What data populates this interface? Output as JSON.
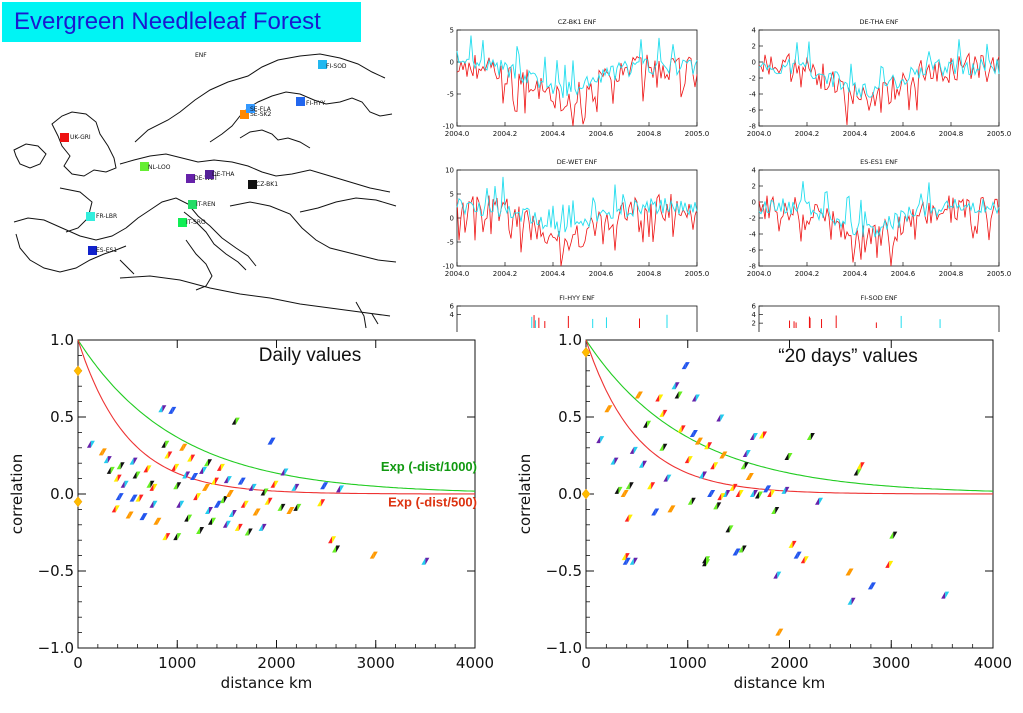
{
  "header": {
    "title": "Evergreen Needleleaf Forest",
    "title_bg": "#00f4f4",
    "title_color": "#1a1ad0"
  },
  "map": {
    "label": "ENF",
    "sites": [
      {
        "name": "FI-SOD",
        "color": "#22b8f0"
      },
      {
        "name": "FI-HYY",
        "color": "#2266ee"
      },
      {
        "name": "SE-SK2",
        "color": "#ff8800"
      },
      {
        "name": "SE-FLA",
        "color": "#3399ff"
      },
      {
        "name": "UK-GRI",
        "color": "#ee1111"
      },
      {
        "name": "NL-LOO",
        "color": "#66ee33"
      },
      {
        "name": "DE-WET",
        "color": "#6622aa"
      },
      {
        "name": "DE-THA",
        "color": "#552299"
      },
      {
        "name": "CZ-BK1",
        "color": "#111111"
      },
      {
        "name": "IT-REN",
        "color": "#22dd66"
      },
      {
        "name": "IT-SRO",
        "color": "#11ee55"
      },
      {
        "name": "FR-LBR",
        "color": "#33eedd"
      },
      {
        "name": "ES-ES1",
        "color": "#1122cc"
      }
    ]
  },
  "ts_panels": [
    {
      "title": "CZ-BK1 ENF",
      "yticks": [
        "5",
        "0",
        "-5",
        "-10"
      ],
      "ylim": [
        -10,
        5
      ]
    },
    {
      "title": "DE-THA ENF",
      "yticks": [
        "4",
        "2",
        "0",
        "-2",
        "-4",
        "-6",
        "-8"
      ],
      "ylim": [
        -8,
        4
      ]
    },
    {
      "title": "DE-WET ENF",
      "yticks": [
        "10",
        "5",
        "0",
        "-5",
        "-10"
      ],
      "ylim": [
        -10,
        10
      ]
    },
    {
      "title": "ES-ES1 ENF",
      "yticks": [
        "4",
        "2",
        "0",
        "-2",
        "-4",
        "-6",
        "-8"
      ],
      "ylim": [
        -8,
        4
      ]
    },
    {
      "title": "FI-HYY ENF",
      "yticks": [
        "6",
        "4"
      ],
      "ylim": [
        -8,
        6
      ]
    },
    {
      "title": "FI-SOD ENF",
      "yticks": [
        "6",
        "4",
        "2"
      ],
      "ylim": [
        -8,
        6
      ]
    }
  ],
  "ts_xticks": [
    "2004.0",
    "2004.2",
    "2004.4",
    "2004.6",
    "2004.8",
    "2005.0"
  ],
  "chart_data": [
    {
      "type": "scatter",
      "title": "Daily values",
      "xlabel": "distance km",
      "ylabel": "correlation",
      "xlim": [
        0,
        4000
      ],
      "ylim": [
        -1.0,
        1.0
      ],
      "xticks": [
        "0",
        "1000",
        "2000",
        "3000",
        "4000"
      ],
      "yticks": [
        "1.0",
        "0.5",
        "0.0",
        "−0.5",
        "−1.0"
      ],
      "curves": [
        {
          "label": "Exp (-dist/1000)",
          "scale": 1000,
          "color": "#22cc22",
          "label_color": "#119911"
        },
        {
          "label": "Exp (-dist/500)",
          "scale": 500,
          "color": "#ee3333",
          "label_color": "#dd3311"
        }
      ],
      "points": [
        [
          0,
          0.8
        ],
        [
          0,
          -0.05
        ],
        [
          130,
          0.32
        ],
        [
          250,
          0.27
        ],
        [
          300,
          0.22
        ],
        [
          330,
          0.15
        ],
        [
          400,
          0.1
        ],
        [
          420,
          -0.02
        ],
        [
          380,
          -0.1
        ],
        [
          430,
          0.18
        ],
        [
          470,
          0.06
        ],
        [
          520,
          -0.14
        ],
        [
          560,
          0.21
        ],
        [
          590,
          0.12
        ],
        [
          620,
          -0.03
        ],
        [
          660,
          -0.15
        ],
        [
          700,
          0.16
        ],
        [
          730,
          0.06
        ],
        [
          760,
          -0.07
        ],
        [
          800,
          -0.18
        ],
        [
          850,
          0.55
        ],
        [
          880,
          0.32
        ],
        [
          910,
          0.25
        ],
        [
          950,
          0.54
        ],
        [
          980,
          0.17
        ],
        [
          1000,
          0.05
        ],
        [
          1030,
          -0.07
        ],
        [
          1060,
          0.3
        ],
        [
          1090,
          0.12
        ],
        [
          1110,
          -0.16
        ],
        [
          1140,
          0.23
        ],
        [
          1170,
          0.11
        ],
        [
          1200,
          -0.02
        ],
        [
          1230,
          -0.24
        ],
        [
          1260,
          0.15
        ],
        [
          1290,
          0.04
        ],
        [
          1320,
          -0.11
        ],
        [
          1350,
          -0.18
        ],
        [
          1380,
          0.08
        ],
        [
          1410,
          -0.07
        ],
        [
          1440,
          0.17
        ],
        [
          1470,
          -0.04
        ],
        [
          1500,
          -0.2
        ],
        [
          1530,
          0.0
        ],
        [
          1560,
          -0.13
        ],
        [
          1590,
          0.47
        ],
        [
          1620,
          -0.22
        ],
        [
          1650,
          0.08
        ],
        [
          1680,
          -0.07
        ],
        [
          1720,
          -0.25
        ],
        [
          1760,
          0.04
        ],
        [
          1800,
          -0.12
        ],
        [
          1860,
          -0.22
        ],
        [
          1880,
          0.01
        ],
        [
          1920,
          -0.05
        ],
        [
          1950,
          0.34
        ],
        [
          1980,
          0.06
        ],
        [
          2050,
          -0.09
        ],
        [
          2080,
          0.14
        ],
        [
          2140,
          -0.11
        ],
        [
          2190,
          0.04
        ],
        [
          2210,
          -0.09
        ],
        [
          2450,
          -0.06
        ],
        [
          2480,
          0.05
        ],
        [
          2560,
          -0.3
        ],
        [
          2600,
          -0.36
        ],
        [
          2640,
          0.03
        ],
        [
          2980,
          -0.4
        ],
        [
          3500,
          -0.44
        ],
        [
          1000,
          -0.28
        ],
        [
          890,
          -0.28
        ],
        [
          560,
          -0.03
        ],
        [
          760,
          0.04
        ],
        [
          1310,
          0.2
        ],
        [
          1510,
          0.09
        ]
      ]
    },
    {
      "type": "scatter",
      "title": "“20 days” values",
      "xlabel": "distance km",
      "ylabel": "correlation",
      "xlim": [
        0,
        4000
      ],
      "ylim": [
        -1.0,
        1.0
      ],
      "xticks": [
        "0",
        "1000",
        "2000",
        "3000",
        "4000"
      ],
      "yticks": [
        "1.0",
        "0.5",
        "0.0",
        "−0.5",
        "−1.0"
      ],
      "curves": [
        {
          "label": "",
          "scale": 1000,
          "color": "#22cc22",
          "label_color": "#119911"
        },
        {
          "label": "",
          "scale": 500,
          "color": "#ee3333",
          "label_color": "#dd3311"
        }
      ],
      "points": [
        [
          0,
          0.92
        ],
        [
          0,
          0.0
        ],
        [
          140,
          0.35
        ],
        [
          220,
          0.55
        ],
        [
          280,
          0.21
        ],
        [
          320,
          0.02
        ],
        [
          390,
          -0.41
        ],
        [
          400,
          -0.44
        ],
        [
          420,
          -0.16
        ],
        [
          430,
          0.05
        ],
        [
          470,
          0.28
        ],
        [
          520,
          0.64
        ],
        [
          560,
          0.19
        ],
        [
          600,
          0.45
        ],
        [
          640,
          0.05
        ],
        [
          680,
          -0.12
        ],
        [
          720,
          0.62
        ],
        [
          760,
          0.3
        ],
        [
          800,
          0.1
        ],
        [
          840,
          -0.1
        ],
        [
          880,
          0.7
        ],
        [
          910,
          0.64
        ],
        [
          940,
          0.42
        ],
        [
          980,
          0.83
        ],
        [
          1010,
          0.22
        ],
        [
          1040,
          -0.05
        ],
        [
          1080,
          0.62
        ],
        [
          1110,
          0.34
        ],
        [
          1150,
          0.12
        ],
        [
          1180,
          -0.45
        ],
        [
          1200,
          0.31
        ],
        [
          1230,
          0.0
        ],
        [
          1260,
          0.18
        ],
        [
          1290,
          -0.08
        ],
        [
          1320,
          0.49
        ],
        [
          1350,
          0.25
        ],
        [
          1380,
          0.0
        ],
        [
          1410,
          -0.23
        ],
        [
          1450,
          0.04
        ],
        [
          1480,
          -0.38
        ],
        [
          1510,
          0.0
        ],
        [
          1540,
          -0.36
        ],
        [
          1580,
          0.26
        ],
        [
          1610,
          0.11
        ],
        [
          1650,
          0.0
        ],
        [
          1700,
          -0.01
        ],
        [
          1740,
          0.38
        ],
        [
          1780,
          0.03
        ],
        [
          1820,
          0.0
        ],
        [
          1860,
          -0.11
        ],
        [
          1880,
          -0.53
        ],
        [
          1900,
          -0.9
        ],
        [
          1960,
          0.02
        ],
        [
          1990,
          0.24
        ],
        [
          2030,
          -0.33
        ],
        [
          2080,
          -0.4
        ],
        [
          2150,
          -0.43
        ],
        [
          2210,
          0.37
        ],
        [
          2290,
          -0.05
        ],
        [
          2590,
          -0.51
        ],
        [
          2610,
          -0.7
        ],
        [
          2670,
          0.14
        ],
        [
          2700,
          0.18
        ],
        [
          2810,
          -0.6
        ],
        [
          2980,
          -0.46
        ],
        [
          3020,
          -0.27
        ],
        [
          3530,
          -0.66
        ],
        [
          380,
          0.0
        ],
        [
          470,
          -0.44
        ],
        [
          1180,
          -0.43
        ],
        [
          760,
          0.52
        ],
        [
          1060,
          0.39
        ],
        [
          1330,
          -0.02
        ],
        [
          1560,
          0.18
        ],
        [
          1650,
          0.37
        ]
      ]
    }
  ]
}
